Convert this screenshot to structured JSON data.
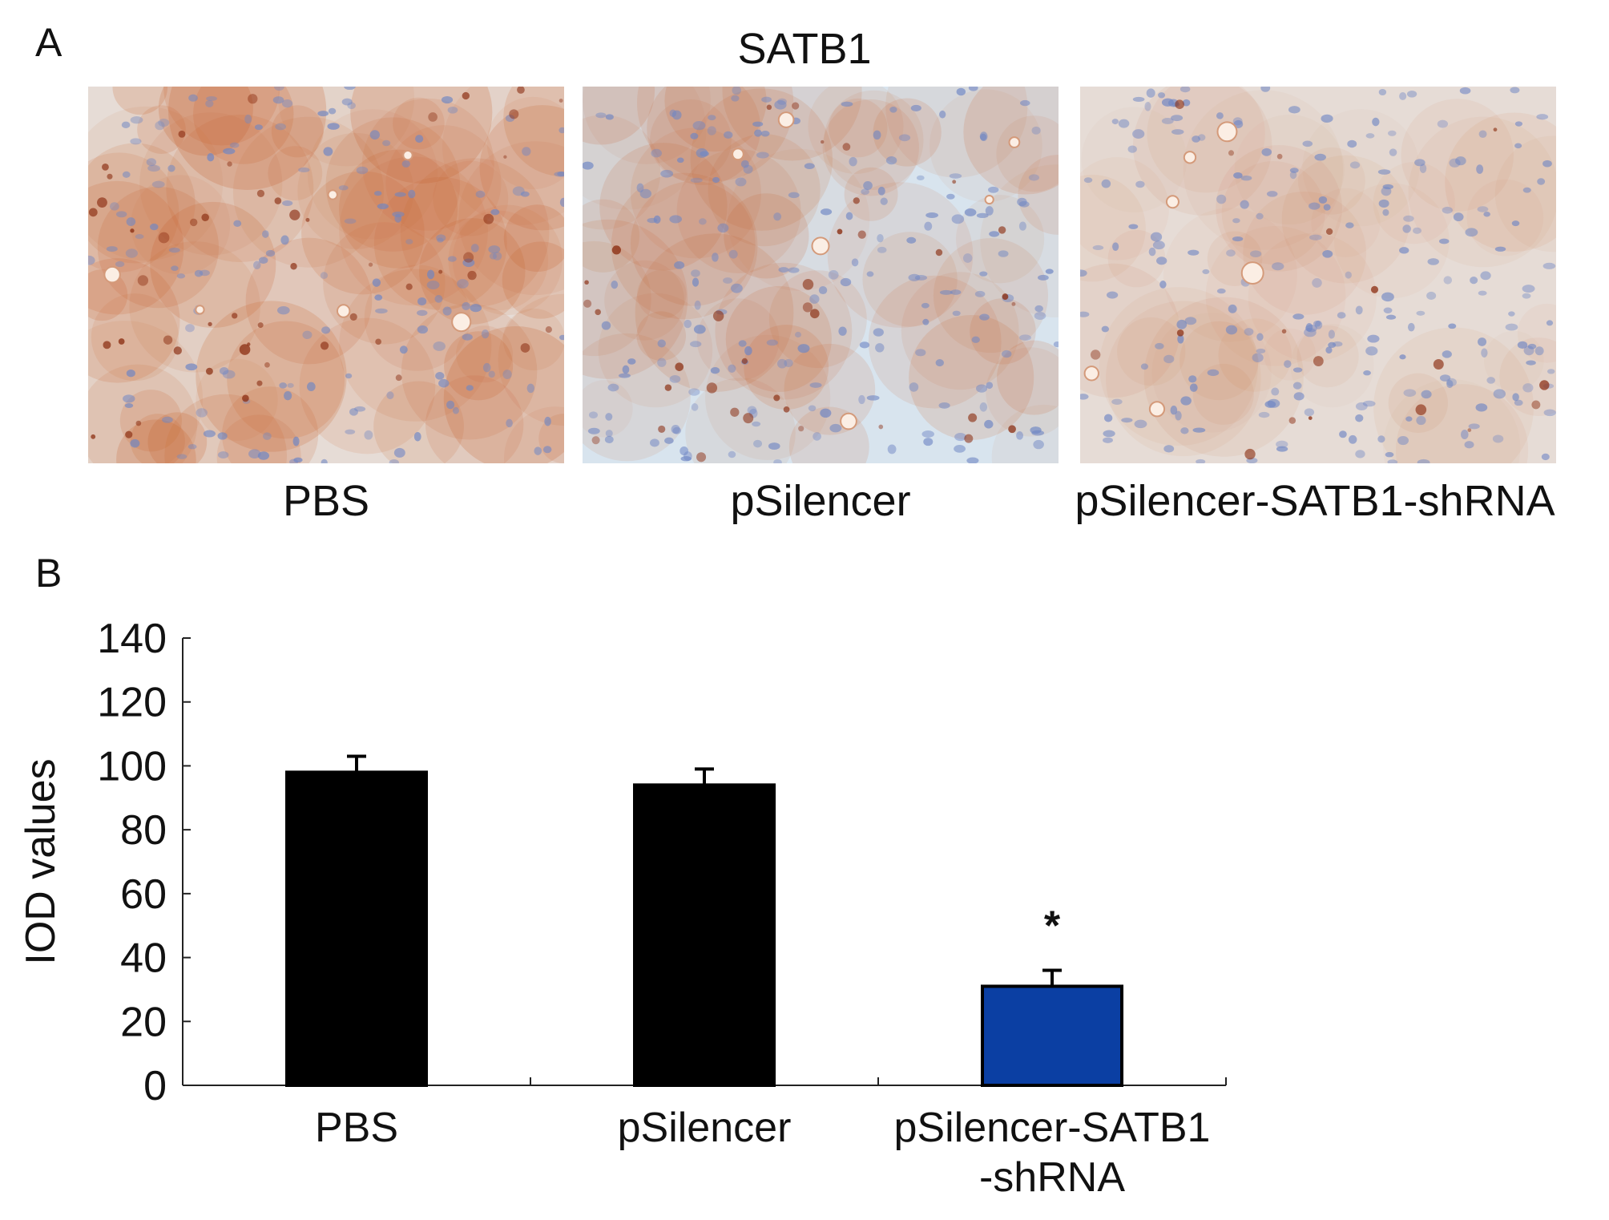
{
  "panel_a": {
    "letter": "A",
    "title": "SATB1",
    "images": [
      {
        "caption": "PBS",
        "stain_level": 0.85
      },
      {
        "caption": "pSilencer",
        "stain_level": 0.6
      },
      {
        "caption": "pSilencer-SATB1-shRNA",
        "stain_level": 0.3
      }
    ]
  },
  "panel_b": {
    "letter": "B"
  },
  "chart_data": {
    "type": "bar",
    "categories": [
      [
        "PBS"
      ],
      [
        "pSilencer"
      ],
      [
        "pSilencer-SATB1",
        "-shRNA"
      ]
    ],
    "values": [
      98,
      94,
      31
    ],
    "errors": [
      5,
      5,
      5
    ],
    "significance": [
      "",
      "",
      "*"
    ],
    "bar_colors": [
      "#000000",
      "#000000",
      "#0b3fa3"
    ],
    "ylabel": "IOD values",
    "xlabel": "",
    "ylim": [
      0,
      140
    ],
    "yticks": [
      "0",
      "20",
      "40",
      "60",
      "80",
      "100",
      "120",
      "140"
    ],
    "grid": false
  }
}
